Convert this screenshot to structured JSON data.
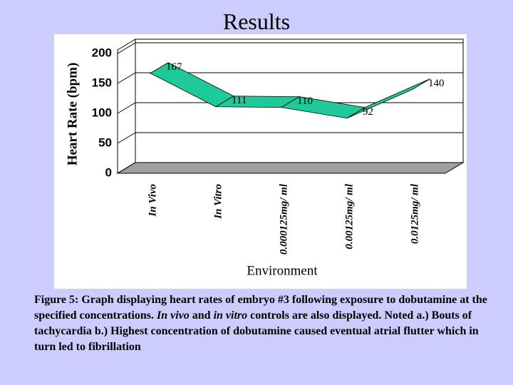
{
  "slide_title": "Results",
  "chart_data": {
    "type": "ribbon",
    "y_label": "Heart Rate (bpm)",
    "x_label": "Environment",
    "categories": [
      "In Vivo",
      "In Vitro",
      "0.000125mg/ ml",
      "0.00125mg/ ml",
      "0.0125mg/ ml"
    ],
    "values": [
      167,
      111,
      110,
      92,
      140
    ],
    "color": "#20c99a",
    "ylim": [
      0,
      200
    ],
    "yticks": [
      0,
      50,
      100,
      150,
      200
    ],
    "grid": true
  },
  "caption": [
    {
      "text": "Figure 5:  Graph displaying heart rates of embryo #3 following exposure to dobutamine at the specified concentrations.  ",
      "italic": false
    },
    {
      "text": "In vivo",
      "italic": true
    },
    {
      "text": " and ",
      "italic": false
    },
    {
      "text": "in vitro",
      "italic": true
    },
    {
      "text": " controls are also displayed.  Noted a.) Bouts of tachycardia  b.) Highest concentration of dobutamine caused eventual atrial flutter which in turn led to fibrillation",
      "italic": false
    }
  ]
}
